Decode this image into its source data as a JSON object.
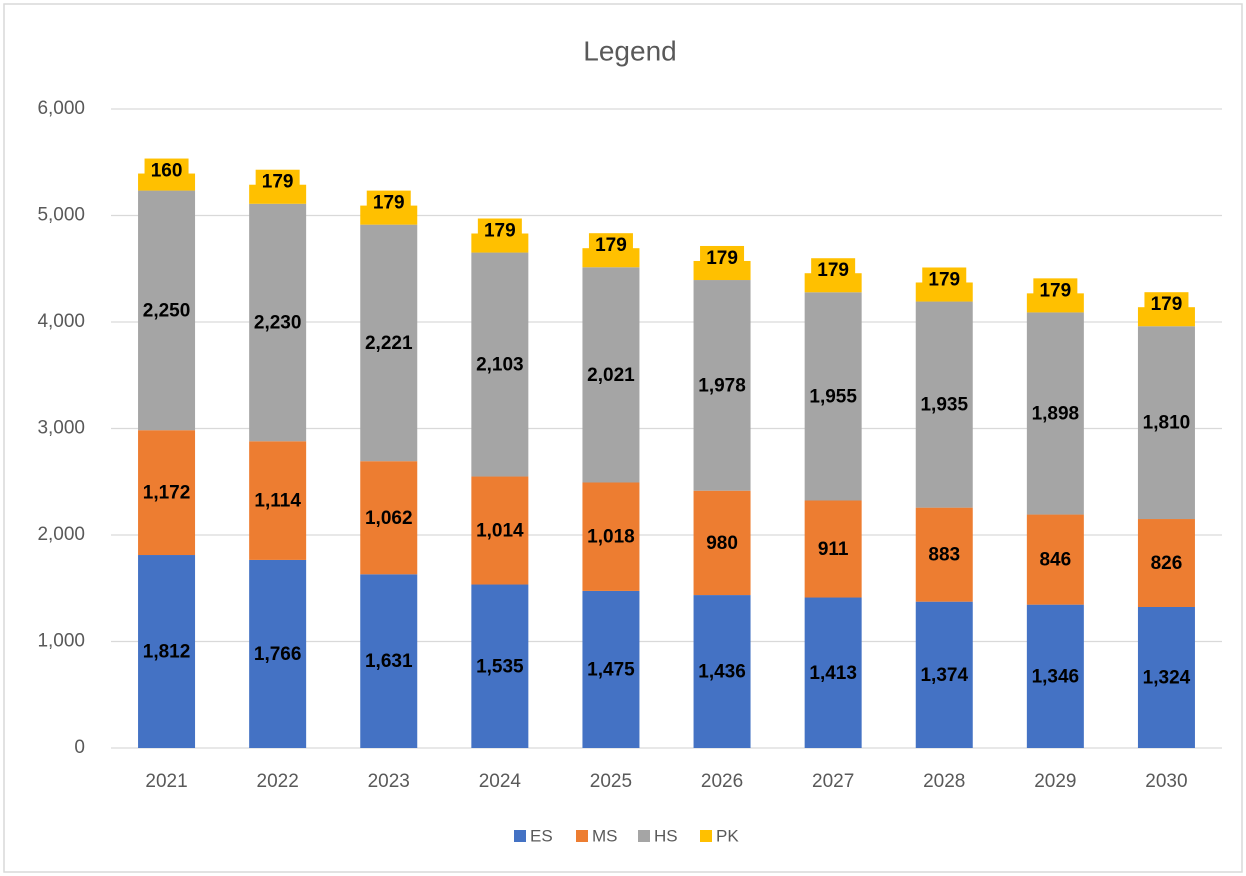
{
  "chart_data": {
    "type": "stacked_bar",
    "title": "Legend",
    "categories": [
      "2021",
      "2022",
      "2023",
      "2024",
      "2025",
      "2026",
      "2027",
      "2028",
      "2029",
      "2030"
    ],
    "series": [
      {
        "name": "ES",
        "color": "#4472c4",
        "values": [
          1812,
          1766,
          1631,
          1535,
          1475,
          1436,
          1413,
          1374,
          1346,
          1324
        ],
        "value_labels": [
          "1,812",
          "1,766",
          "1,631",
          "1,535",
          "1,475",
          "1,436",
          "1,413",
          "1,374",
          "1,346",
          "1,324"
        ]
      },
      {
        "name": "MS",
        "color": "#ed7d31",
        "values": [
          1172,
          1114,
          1062,
          1014,
          1018,
          980,
          911,
          883,
          846,
          826
        ],
        "value_labels": [
          "1,172",
          "1,114",
          "1,062",
          "1,014",
          "1,018",
          "980",
          "911",
          "883",
          "846",
          "826"
        ]
      },
      {
        "name": "HS",
        "color": "#a5a5a5",
        "values": [
          2250,
          2230,
          2221,
          2103,
          2021,
          1978,
          1955,
          1935,
          1898,
          1810
        ],
        "value_labels": [
          "2,250",
          "2,230",
          "2,221",
          "2,103",
          "2,021",
          "1,978",
          "1,955",
          "1,935",
          "1,898",
          "1,810"
        ]
      },
      {
        "name": "PK",
        "color": "#ffc000",
        "values": [
          160,
          179,
          179,
          179,
          179,
          179,
          179,
          179,
          179,
          179
        ],
        "value_labels": [
          "160",
          "179",
          "179",
          "179",
          "179",
          "179",
          "179",
          "179",
          "179",
          "179"
        ]
      }
    ],
    "ylim": [
      0,
      6000
    ],
    "yticks": [
      0,
      {
        "value": 1000,
        "label": "1,000"
      },
      {
        "value": 2000,
        "label": "2,000"
      },
      {
        "value": 3000,
        "label": "3,000"
      },
      {
        "value": 4000,
        "label": "4,000"
      },
      {
        "value": 5000,
        "label": "5,000"
      },
      {
        "value": 6000,
        "label": "6,000"
      }
    ],
    "grid": true,
    "legend": "bottom"
  }
}
